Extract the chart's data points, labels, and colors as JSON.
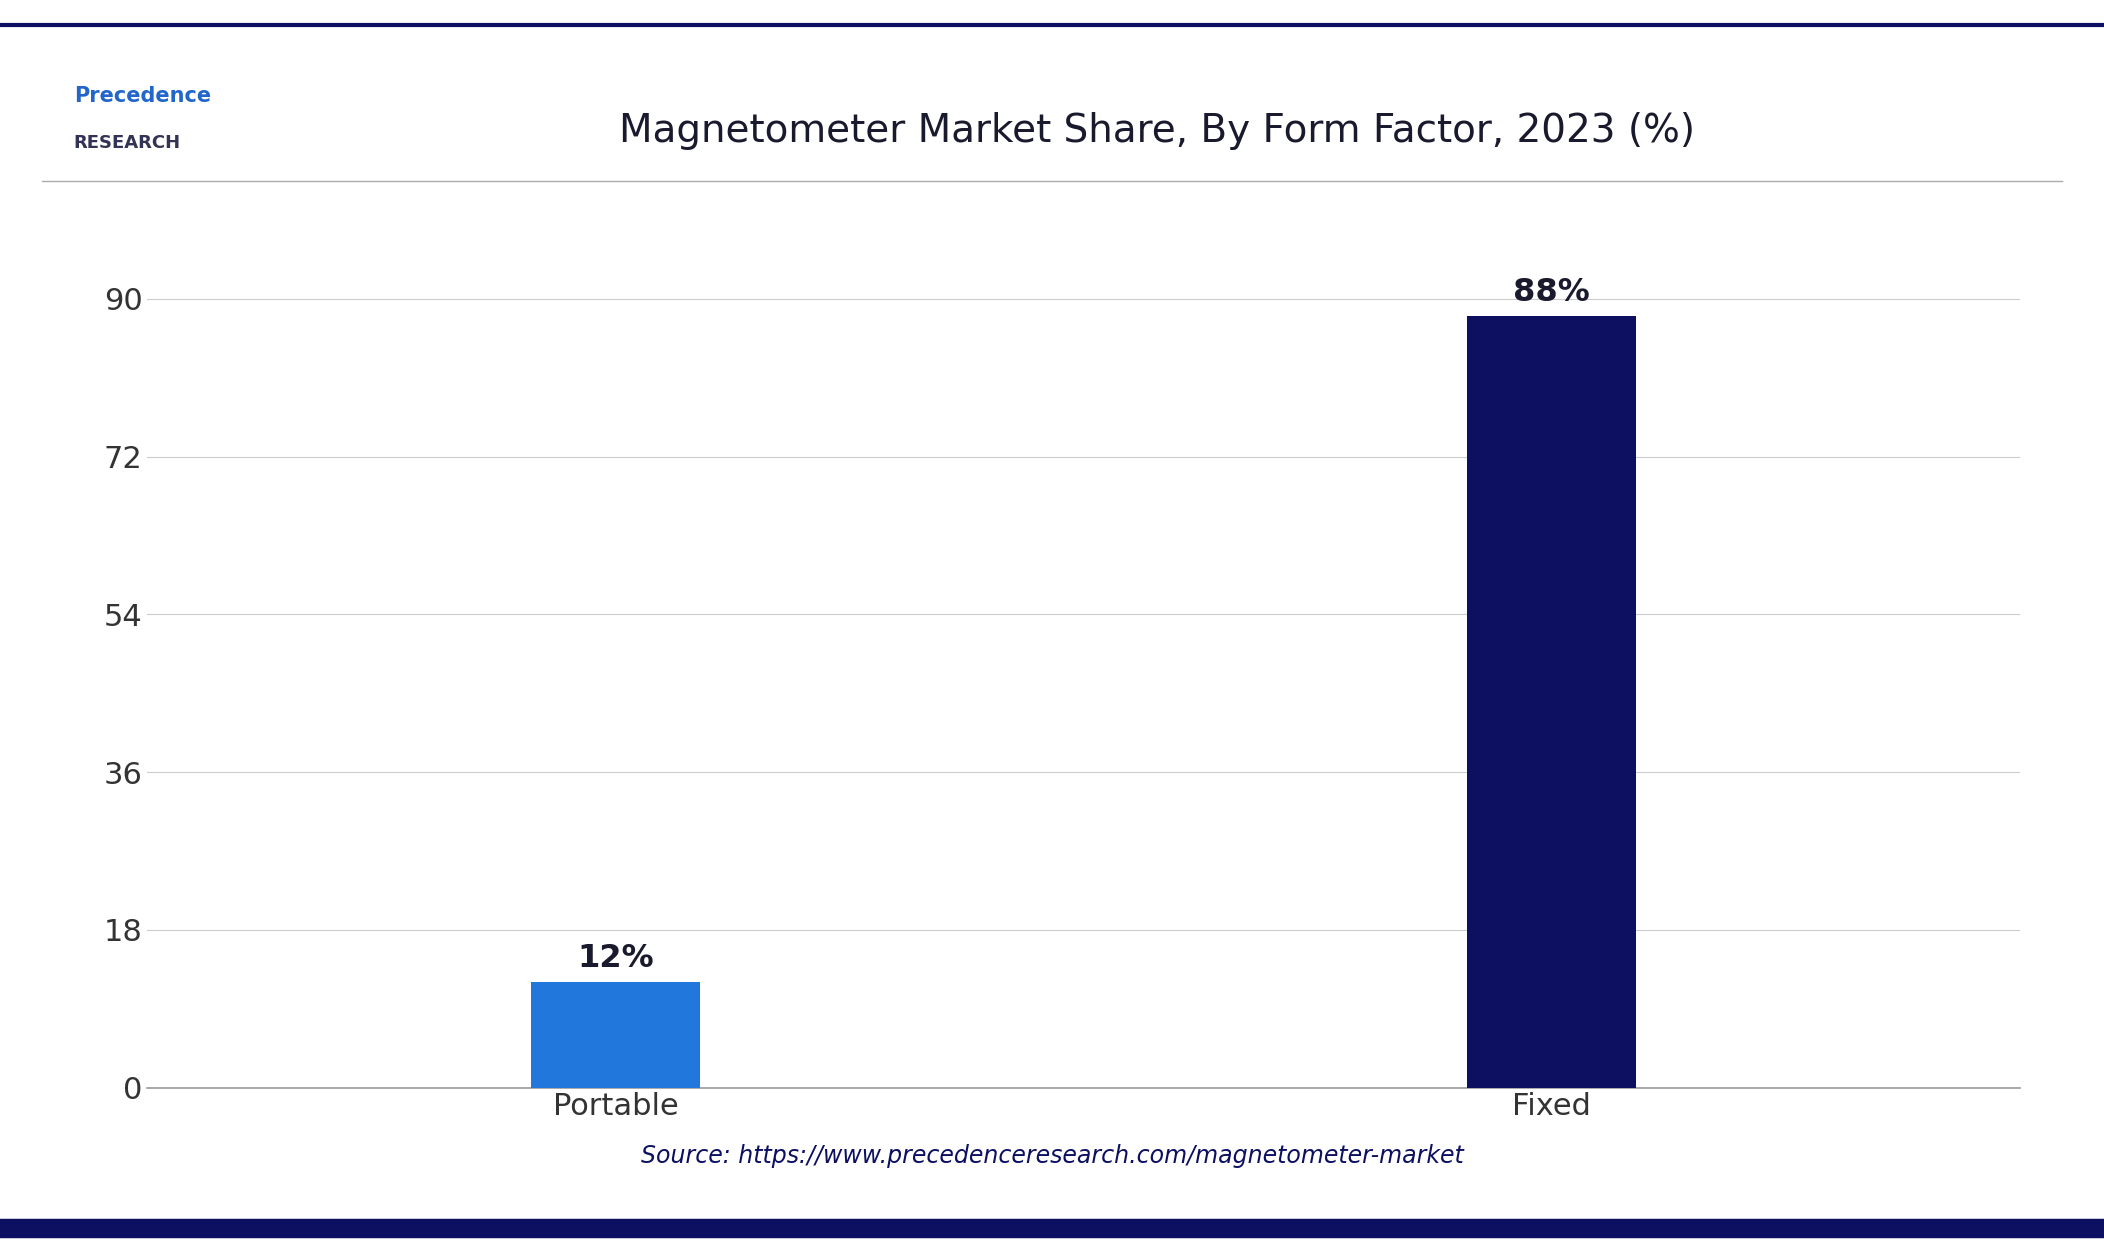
{
  "title": "Magnetometer Market Share, By Form Factor, 2023 (%)",
  "categories": [
    "Portable",
    "Fixed"
  ],
  "values": [
    12,
    88
  ],
  "labels": [
    "12%",
    "88%"
  ],
  "bar_colors": [
    "#2277DD",
    "#0D1060"
  ],
  "yticks": [
    0,
    18,
    36,
    54,
    72,
    90
  ],
  "ylim": [
    0,
    97
  ],
  "background_color": "#FFFFFF",
  "plot_bg_color": "#FFFFFF",
  "title_color": "#1a1a2e",
  "tick_color": "#333333",
  "grid_color": "#cccccc",
  "source_text": "Source: https://www.precedenceresearch.com/magnetometer-market",
  "source_color": "#0D1060",
  "border_color": "#0D1060",
  "title_fontsize": 28,
  "tick_fontsize": 22,
  "label_fontsize": 23,
  "source_fontsize": 17,
  "bar_width": 0.18
}
